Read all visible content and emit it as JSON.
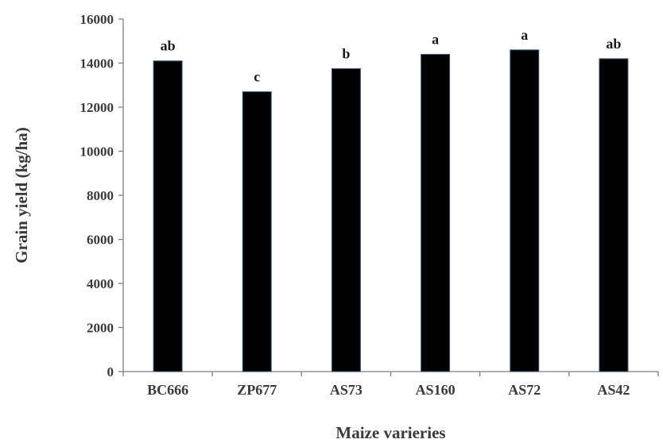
{
  "chart_data": {
    "type": "bar",
    "title": "",
    "xlabel": "Maize varieries",
    "ylabel": "Grain yield (kg/ha)",
    "ylim": [
      0,
      16000
    ],
    "yticks": [
      "0",
      "2000",
      "4000",
      "6000",
      "8000",
      "10000",
      "12000",
      "14000",
      "16000"
    ],
    "categories": [
      "BC666",
      "ZP677",
      "AS73",
      "AS160",
      "AS72",
      "AS42"
    ],
    "values": [
      14100,
      12700,
      13750,
      14400,
      14600,
      14200
    ],
    "significance_labels": [
      "ab",
      "c",
      "b",
      "a",
      "a",
      "ab"
    ],
    "bar_color": "#000000",
    "grid": false,
    "legend": "none"
  }
}
